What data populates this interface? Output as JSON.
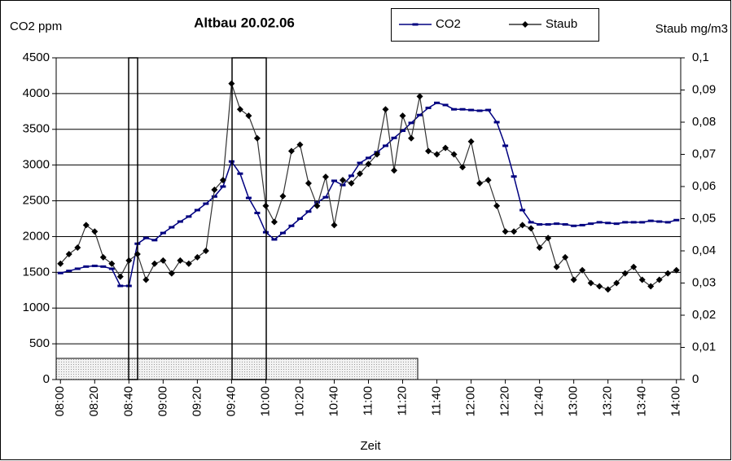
{
  "chart_data": {
    "type": "line",
    "title": "Altbau 20.02.06",
    "y_label": "CO2 ppm",
    "y2_label": "Staub mg/m3",
    "x_label": "Zeit",
    "categories": [
      "08:00",
      null,
      null,
      null,
      "08:20",
      null,
      null,
      null,
      "08:40",
      null,
      null,
      null,
      "09:00",
      null,
      null,
      null,
      "09:20",
      null,
      null,
      null,
      "09:40",
      null,
      null,
      null,
      "10:00",
      null,
      null,
      null,
      "10:20",
      null,
      null,
      null,
      "10:40",
      null,
      null,
      null,
      "11:00",
      null,
      null,
      null,
      "11:20",
      null,
      null,
      null,
      "11:40",
      null,
      null,
      null,
      "12:00",
      null,
      null,
      null,
      "12:20",
      null,
      null,
      null,
      "12:40",
      null,
      null,
      null,
      "13:00",
      null,
      null,
      null,
      "13:20",
      null,
      null,
      null,
      "13:40",
      null,
      null,
      null,
      "14:00"
    ],
    "series": [
      {
        "name": "CO2",
        "color": "#000080",
        "values": [
          1490,
          1520,
          1550,
          1580,
          1590,
          1580,
          1550,
          1310,
          1310,
          1900,
          1980,
          1950,
          2050,
          2130,
          2210,
          2280,
          2370,
          2460,
          2560,
          2700,
          3050,
          2880,
          2540,
          2330,
          2060,
          1960,
          2050,
          2150,
          2250,
          2350,
          2480,
          2550,
          2780,
          2720,
          2850,
          3030,
          3100,
          3180,
          3270,
          3380,
          3480,
          3590,
          3700,
          3800,
          3870,
          3840,
          3780,
          3780,
          3770,
          3760,
          3770,
          3600,
          3270,
          2840,
          2370,
          2200,
          2170,
          2170,
          2180,
          2170,
          2150,
          2160,
          2180,
          2200,
          2190,
          2180,
          2200,
          2200,
          2200,
          2220,
          2210,
          2200,
          2230
        ]
      },
      {
        "name": "Staub",
        "color": "#333333",
        "axis": "y2",
        "values": [
          0.036,
          0.039,
          0.041,
          0.048,
          0.046,
          0.038,
          0.036,
          0.032,
          0.037,
          0.039,
          0.031,
          0.036,
          0.037,
          0.033,
          0.037,
          0.036,
          0.038,
          0.04,
          0.059,
          0.062,
          0.092,
          0.084,
          0.082,
          0.075,
          0.054,
          0.049,
          0.057,
          0.071,
          0.073,
          0.061,
          0.054,
          0.063,
          0.048,
          0.062,
          0.061,
          0.064,
          0.067,
          0.07,
          0.084,
          0.065,
          0.082,
          0.075,
          0.088,
          0.071,
          0.07,
          0.072,
          0.07,
          0.066,
          0.074,
          0.061,
          0.062,
          0.054,
          0.046,
          0.046,
          0.048,
          0.047,
          0.041,
          0.044,
          0.035,
          0.038,
          0.031,
          0.034,
          0.03,
          0.029,
          0.028,
          0.03,
          0.033,
          0.035,
          0.031,
          0.029,
          0.031,
          0.033,
          0.034
        ]
      }
    ],
    "ylim": [
      0,
      4500
    ],
    "yticks": [
      0,
      500,
      1000,
      1500,
      2000,
      2500,
      3000,
      3500,
      4000,
      4500
    ],
    "y2lim": [
      0,
      0.1
    ],
    "y2ticks": [
      0,
      {
        "value": 0.01,
        "label": "0,01"
      },
      {
        "value": 0.02,
        "label": "0,02"
      },
      {
        "value": 0.03,
        "label": "0,03"
      },
      {
        "value": 0.04,
        "label": "0,04"
      },
      {
        "value": 0.05,
        "label": "0,05"
      },
      {
        "value": 0.06,
        "label": "0,06"
      },
      {
        "value": 0.07,
        "label": "0,07"
      },
      {
        "value": 0.08,
        "label": "0,08"
      },
      {
        "value": 0.09,
        "label": "0,09"
      },
      {
        "value": 0.1,
        "label": "0,1"
      }
    ],
    "grid": true,
    "legend": "top"
  }
}
